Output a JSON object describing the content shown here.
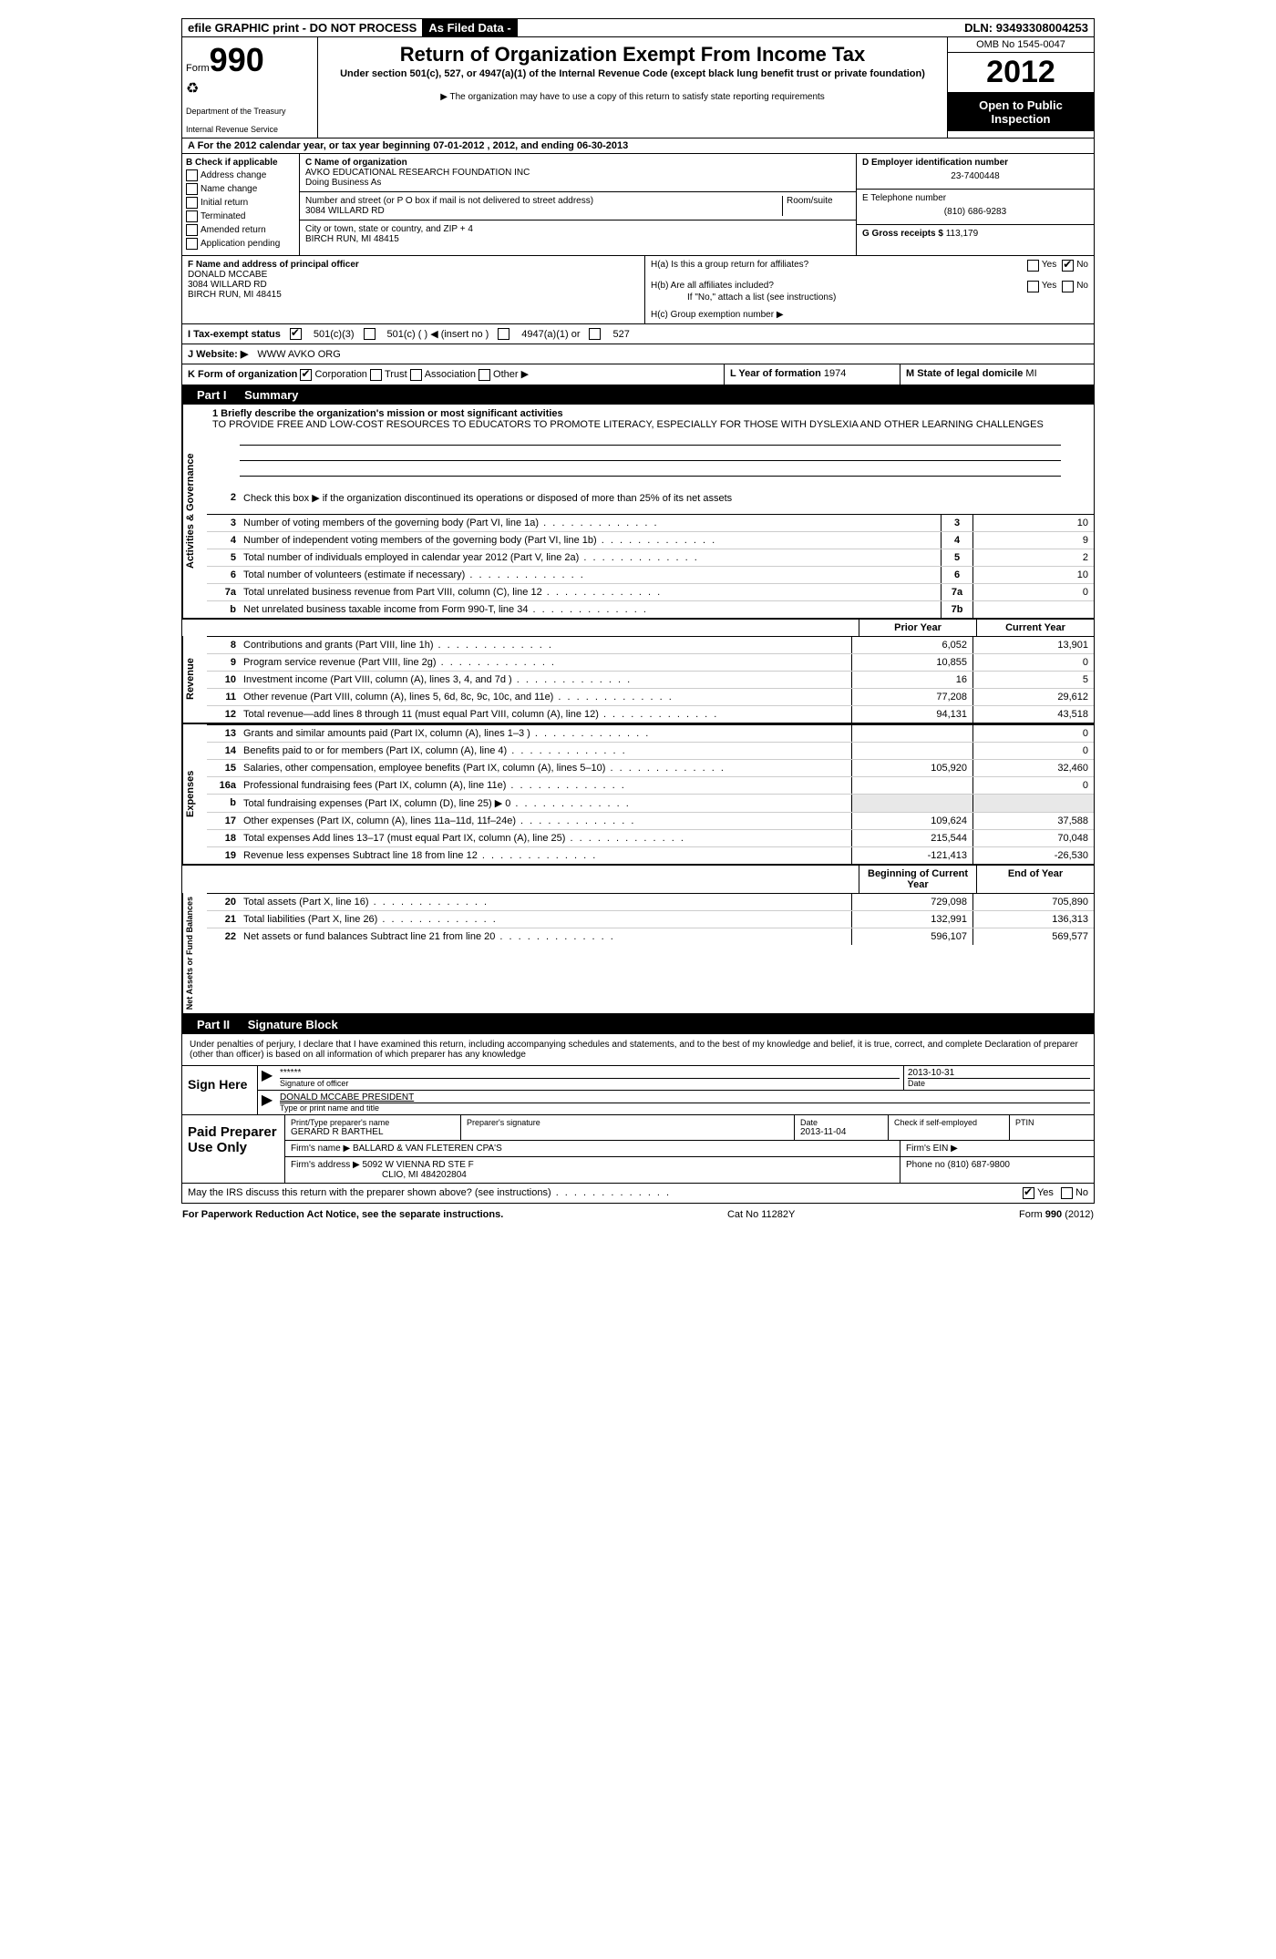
{
  "topbar": {
    "efile": "efile GRAPHIC print - DO NOT PROCESS",
    "asfiled": "As Filed Data -",
    "dln_label": "DLN:",
    "dln": "93493308004253"
  },
  "header": {
    "form_label": "Form",
    "form_num": "990",
    "dept1": "Department of the Treasury",
    "dept2": "Internal Revenue Service",
    "title": "Return of Organization Exempt From Income Tax",
    "subtitle": "Under section 501(c), 527, or 4947(a)(1) of the Internal Revenue Code (except black lung benefit trust or private foundation)",
    "note": "▶ The organization may have to use a copy of this return to satisfy state reporting requirements",
    "omb": "OMB No 1545-0047",
    "year": "2012",
    "open": "Open to Public Inspection"
  },
  "sectionA": "A For the 2012 calendar year, or tax year beginning 07-01-2012    , 2012, and ending 06-30-2013",
  "colB": {
    "label": "B Check if applicable",
    "items": [
      "Address change",
      "Name change",
      "Initial return",
      "Terminated",
      "Amended return",
      "Application pending"
    ]
  },
  "colC": {
    "name_label": "C Name of organization",
    "name": "AVKO EDUCATIONAL RESEARCH FOUNDATION INC",
    "dba_label": "Doing Business As",
    "street_label": "Number and street (or P O  box if mail is not delivered to street address)",
    "room_label": "Room/suite",
    "street": "3084 WILLARD RD",
    "city_label": "City or town, state or country, and ZIP + 4",
    "city": "BIRCH RUN, MI  48415"
  },
  "colD": {
    "ein_label": "D Employer identification number",
    "ein": "23-7400448",
    "phone_label": "E Telephone number",
    "phone": "(810) 686-9283",
    "gross_label": "G Gross receipts $",
    "gross": "113,179"
  },
  "colF": {
    "label": "F  Name and address of principal officer",
    "name": "DONALD MCCABE",
    "street": "3084 WILLARD RD",
    "city": "BIRCH RUN, MI  48415"
  },
  "colH": {
    "ha": "H(a)  Is this a group return for affiliates?",
    "hb": "H(b)  Are all affiliates included?",
    "hb_note": "If \"No,\" attach a list  (see instructions)",
    "hc": "H(c)   Group exemption number ▶",
    "yes": "Yes",
    "no": "No"
  },
  "statusI": {
    "label": "I   Tax-exempt status",
    "opt1": "501(c)(3)",
    "opt2": "501(c) (   ) ◀ (insert no )",
    "opt3": "4947(a)(1) or",
    "opt4": "527"
  },
  "websiteJ": {
    "label": "J  Website: ▶",
    "value": "WWW AVKO ORG"
  },
  "rowK": {
    "label": "K Form of organization",
    "corp": "Corporation",
    "trust": "Trust",
    "assoc": "Association",
    "other": "Other ▶"
  },
  "rowL": {
    "label": "L Year of formation",
    "value": "1974"
  },
  "rowM": {
    "label": "M State of legal domicile",
    "value": "MI"
  },
  "part1": {
    "label": "Part I",
    "title": "Summary"
  },
  "mission": {
    "intro": "1     Briefly describe the organization's mission or most significant activities",
    "text": "TO PROVIDE FREE AND LOW-COST RESOURCES TO EDUCATORS TO PROMOTE LITERACY, ESPECIALLY FOR THOSE WITH DYSLEXIA AND OTHER LEARNING CHALLENGES"
  },
  "line2": "Check this box ▶       if the organization discontinued its operations or disposed of more than 25% of its net assets",
  "governance_label": "Activities & Governance",
  "revenue_label": "Revenue",
  "expenses_label": "Expenses",
  "netassets_label": "Net Assets or Fund Balances",
  "gov_lines": [
    {
      "n": "3",
      "d": "Number of voting members of the governing body (Part VI, line 1a)",
      "box": "3",
      "v": "10"
    },
    {
      "n": "4",
      "d": "Number of independent voting members of the governing body (Part VI, line 1b)",
      "box": "4",
      "v": "9"
    },
    {
      "n": "5",
      "d": "Total number of individuals employed in calendar year 2012 (Part V, line 2a)",
      "box": "5",
      "v": "2"
    },
    {
      "n": "6",
      "d": "Total number of volunteers (estimate if necessary)",
      "box": "6",
      "v": "10"
    },
    {
      "n": "7a",
      "d": "Total unrelated business revenue from Part VIII, column (C), line 12",
      "box": "7a",
      "v": "0"
    },
    {
      "n": "b",
      "d": "Net unrelated business taxable income from Form 990-T, line 34",
      "box": "7b",
      "v": ""
    }
  ],
  "col_headers": {
    "prior": "Prior Year",
    "current": "Current Year",
    "begin": "Beginning of Current Year",
    "end": "End of Year"
  },
  "rev_lines": [
    {
      "n": "8",
      "d": "Contributions and grants (Part VIII, line 1h)",
      "p": "6,052",
      "c": "13,901"
    },
    {
      "n": "9",
      "d": "Program service revenue (Part VIII, line 2g)",
      "p": "10,855",
      "c": "0"
    },
    {
      "n": "10",
      "d": "Investment income (Part VIII, column (A), lines 3, 4, and 7d )",
      "p": "16",
      "c": "5"
    },
    {
      "n": "11",
      "d": "Other revenue (Part VIII, column (A), lines 5, 6d, 8c, 9c, 10c, and 11e)",
      "p": "77,208",
      "c": "29,612"
    },
    {
      "n": "12",
      "d": "Total revenue—add lines 8 through 11 (must equal Part VIII, column (A), line 12)",
      "p": "94,131",
      "c": "43,518"
    }
  ],
  "exp_lines": [
    {
      "n": "13",
      "d": "Grants and similar amounts paid (Part IX, column (A), lines 1–3 )",
      "p": "",
      "c": "0"
    },
    {
      "n": "14",
      "d": "Benefits paid to or for members (Part IX, column (A), line 4)",
      "p": "",
      "c": "0"
    },
    {
      "n": "15",
      "d": "Salaries, other compensation, employee benefits (Part IX, column (A), lines 5–10)",
      "p": "105,920",
      "c": "32,460"
    },
    {
      "n": "16a",
      "d": "Professional fundraising fees (Part IX, column (A), line 11e)",
      "p": "",
      "c": "0"
    },
    {
      "n": "b",
      "d": "Total fundraising expenses (Part IX, column (D), line 25)  ▶ 0",
      "p": "",
      "c": "",
      "shade": true
    },
    {
      "n": "17",
      "d": "Other expenses (Part IX, column (A), lines 11a–11d, 11f–24e)",
      "p": "109,624",
      "c": "37,588"
    },
    {
      "n": "18",
      "d": "Total expenses  Add lines 13–17 (must equal Part IX, column (A), line 25)",
      "p": "215,544",
      "c": "70,048"
    },
    {
      "n": "19",
      "d": "Revenue less expenses  Subtract line 18 from line 12",
      "p": "-121,413",
      "c": "-26,530"
    }
  ],
  "net_lines": [
    {
      "n": "20",
      "d": "Total assets (Part X, line 16)",
      "p": "729,098",
      "c": "705,890"
    },
    {
      "n": "21",
      "d": "Total liabilities (Part X, line 26)",
      "p": "132,991",
      "c": "136,313"
    },
    {
      "n": "22",
      "d": "Net assets or fund balances  Subtract line 21 from line 20",
      "p": "596,107",
      "c": "569,577"
    }
  ],
  "part2": {
    "label": "Part II",
    "title": "Signature Block"
  },
  "perjury": "Under penalties of perjury, I declare that I have examined this return, including accompanying schedules and statements, and to the best of my knowledge and belief, it is true, correct, and complete  Declaration of preparer (other than officer) is based on all information of which preparer has any knowledge",
  "sign": {
    "here": "Sign Here",
    "stars": "******",
    "sig_label": "Signature of officer",
    "date": "2013-10-31",
    "date_label": "Date",
    "name": "DONALD MCCABE PRESIDENT",
    "name_label": "Type or print name and title"
  },
  "paid": {
    "label": "Paid Preparer Use Only",
    "prep_name_label": "Print/Type preparer's name",
    "prep_name": "GERARD R BARTHEL",
    "prep_sig_label": "Preparer's signature",
    "prep_date_label": "Date",
    "prep_date": "2013-11-04",
    "self_emp": "Check        if self-employed",
    "ptin": "PTIN",
    "firm_name_label": "Firm's name     ▶",
    "firm_name": "BALLARD & VAN FLETEREN CPA'S",
    "firm_ein": "Firm's EIN ▶",
    "firm_addr_label": "Firm's address ▶",
    "firm_addr1": "5092 W VIENNA RD STE F",
    "firm_addr2": "CLIO, MI  484202804",
    "phone_label": "Phone no",
    "phone": "(810) 687-9800"
  },
  "discuss": {
    "text": "May the IRS discuss this return with the preparer shown above? (see instructions)",
    "yes": "Yes",
    "no": "No"
  },
  "footer": {
    "left": "For Paperwork Reduction Act Notice, see the separate instructions.",
    "center": "Cat No  11282Y",
    "right": "Form 990 (2012)"
  }
}
